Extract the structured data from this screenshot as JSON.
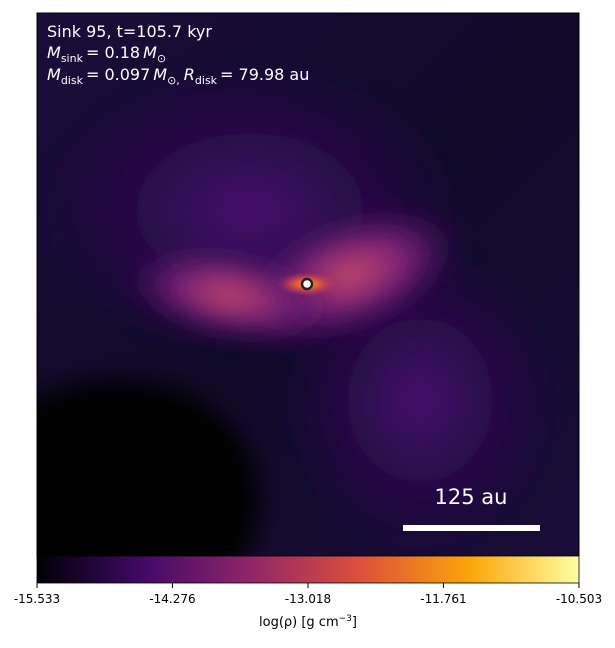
{
  "header": {
    "line1": "Sink 95, t=105.7 kyr",
    "sink_mass": {
      "symbol": "M",
      "subscript": "sink",
      "value": "= 0.18",
      "unit": "M",
      "unit_subscript": "⊙"
    },
    "disk": {
      "mass_symbol": "M",
      "mass_subscript": "disk",
      "mass_value": "= 0.097",
      "mass_unit": "M",
      "mass_unit_subscript": "⊙,",
      "radius_symbol": "R",
      "radius_subscript": "disk",
      "radius_value": "= 79.98 au"
    }
  },
  "scale_bar": {
    "label": "125 au"
  },
  "colorbar": {
    "lim": [
      -15.533,
      -10.503
    ],
    "ticks": [
      -15.533,
      -14.276,
      -13.018,
      -11.761,
      -10.503
    ],
    "colors": [
      "#000004",
      "#420a68",
      "#932667",
      "#dd513a",
      "#fca50a",
      "#fcffa4"
    ],
    "label": {
      "text": "log(ρ) [g cm",
      "superscript": "−3",
      "close": "]"
    }
  }
}
